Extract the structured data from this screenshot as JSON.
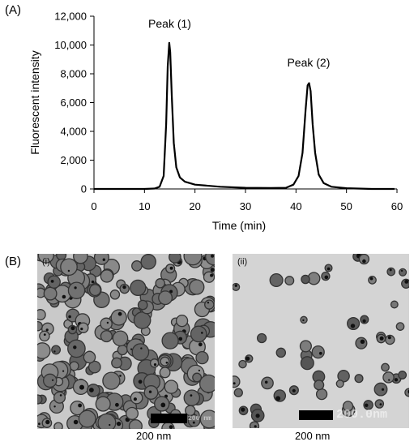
{
  "panel_a": {
    "letter": "(A)"
  },
  "panel_b": {
    "letter": "(B)"
  },
  "chart_data": {
    "type": "line",
    "title": "",
    "xlabel": "Time (min)",
    "ylabel": "Fluorescent intensity",
    "xlim": [
      0,
      60
    ],
    "ylim": [
      0,
      12000
    ],
    "xticks": [
      0,
      10,
      20,
      30,
      40,
      50,
      60
    ],
    "yticks": [
      0,
      2000,
      4000,
      6000,
      8000,
      10000,
      12000
    ],
    "xtick_labels": [
      "0",
      "10",
      "20",
      "30",
      "40",
      "50",
      "60"
    ],
    "ytick_labels": [
      "0",
      "2,000",
      "4,000",
      "6,000",
      "8,000",
      "10,000",
      "12,000"
    ],
    "grid": false,
    "legend": "none",
    "line_color": "#000000",
    "series": [
      {
        "x": [
          0,
          5,
          10,
          12,
          13,
          13.8,
          14.3,
          14.6,
          14.9,
          15.1,
          15.4,
          15.8,
          16.3,
          17,
          18,
          20,
          25,
          30,
          35,
          38,
          39.5,
          40.5,
          41.3,
          41.9,
          42.3,
          42.6,
          42.9,
          43.3,
          43.8,
          44.5,
          45.5,
          47,
          50,
          55,
          59.5
        ],
        "y": [
          0,
          0,
          0,
          30,
          150,
          900,
          4500,
          8500,
          10150,
          9500,
          6500,
          3200,
          1500,
          800,
          500,
          300,
          150,
          80,
          60,
          80,
          300,
          900,
          2500,
          5500,
          7200,
          7350,
          6800,
          4500,
          2500,
          1000,
          400,
          150,
          50,
          0,
          0
        ]
      }
    ],
    "annotations": [
      {
        "text": "Peak (1)",
        "x": 15,
        "y": 11200
      },
      {
        "text": "Peak (2)",
        "x": 42.5,
        "y": 8500
      }
    ]
  },
  "images": [
    {
      "label": "(i)",
      "scale_caption": "200 nm",
      "scale_overlay": "200 nm"
    },
    {
      "label": "(ii)",
      "scale_caption": "200 nm",
      "scale_overlay": "200.0nm"
    }
  ]
}
